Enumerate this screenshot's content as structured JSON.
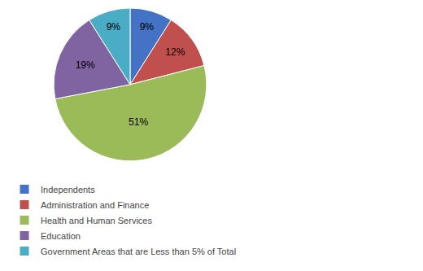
{
  "chart_data": {
    "type": "pie",
    "categories": [
      "Independents",
      "Administration and Finance",
      "Health and Human Services",
      "Education",
      "Government Areas that are Less than 5% of Total"
    ],
    "values": [
      9,
      12,
      51,
      19,
      9
    ],
    "value_labels": [
      "9%",
      "12%",
      "51%",
      "19%",
      "9%"
    ],
    "colors": [
      "#4472C4",
      "#C0504D",
      "#9BBB59",
      "#8064A2",
      "#4BACC6"
    ],
    "data_labels": true,
    "legend": "lower left"
  }
}
